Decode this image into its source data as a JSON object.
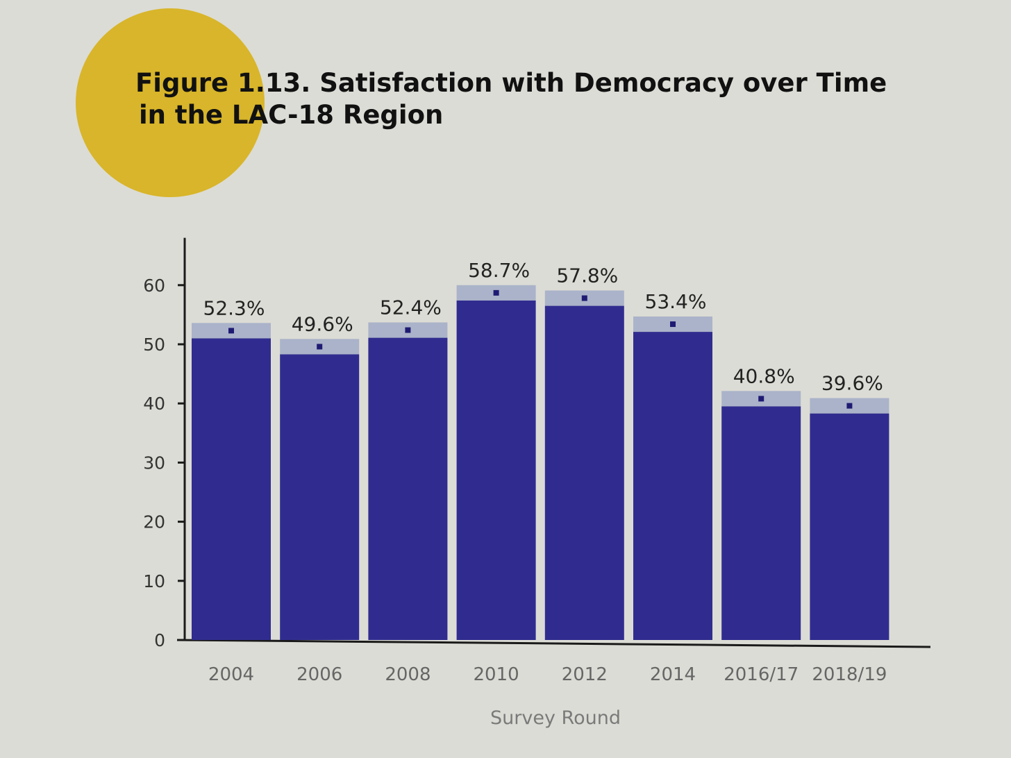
{
  "figure": {
    "title_line1": "Figure 1.13. Satisfaction with Democracy over Time",
    "title_line2": "in the LAC-18 Region"
  },
  "colors": {
    "bar": "#302c8f",
    "bar_dark": "#1f1b73",
    "ci_band": "#aab3c9",
    "accent_circle": "#d8b52a",
    "axis": "#1a1a1a",
    "background": "#dcdcd6"
  },
  "chart_data": {
    "type": "bar",
    "title": "Figure 1.13. Satisfaction with Democracy over Time in the LAC-18 Region",
    "xlabel": "Survey Round",
    "ylabel": "",
    "ylim": [
      0,
      68
    ],
    "yticks": [
      0,
      10,
      20,
      30,
      40,
      50,
      60
    ],
    "grid": false,
    "categories": [
      "2004",
      "2006",
      "2008",
      "2010",
      "2012",
      "2014",
      "2016/17",
      "2018/19"
    ],
    "values": [
      52.3,
      49.6,
      52.4,
      58.7,
      57.8,
      53.4,
      40.8,
      39.6
    ],
    "labels": [
      "52.3%",
      "49.6%",
      "52.4%",
      "58.7%",
      "57.8%",
      "53.4%",
      "40.8%",
      "39.6%"
    ],
    "ci": [
      [
        51.0,
        53.6
      ],
      [
        48.3,
        50.9
      ],
      [
        51.1,
        53.7
      ],
      [
        57.4,
        60.0
      ],
      [
        56.5,
        59.1
      ],
      [
        52.1,
        54.7
      ],
      [
        39.5,
        42.1
      ],
      [
        38.3,
        40.9
      ]
    ]
  }
}
